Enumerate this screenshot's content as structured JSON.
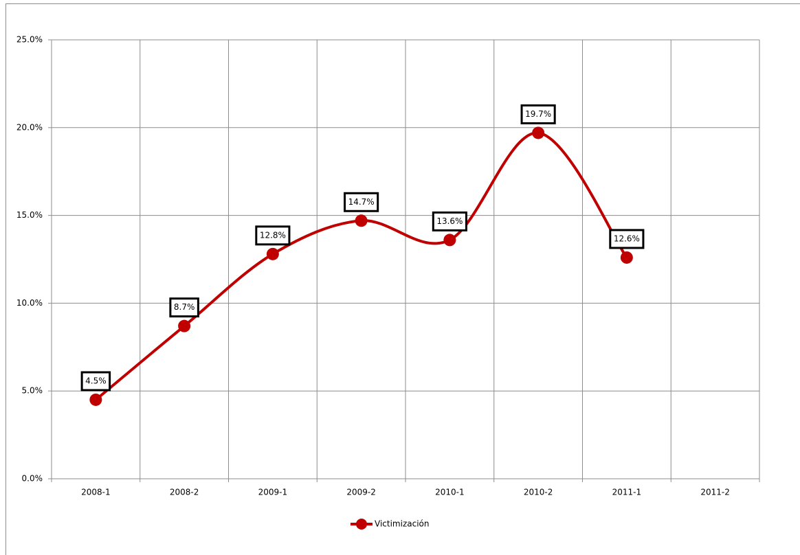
{
  "chart_data": {
    "type": "line",
    "categories": [
      "2008-1",
      "2008-2",
      "2009-1",
      "2009-2",
      "2010-1",
      "2010-2",
      "2011-1",
      "2011-2"
    ],
    "series": [
      {
        "name": "Victimización",
        "color": "#c00000",
        "values": [
          4.5,
          8.7,
          12.8,
          14.7,
          13.6,
          19.7,
          12.6,
          null
        ],
        "value_labels": [
          "4.5%",
          "8.7%",
          "12.8%",
          "14.7%",
          "13.6%",
          "19.7%",
          "12.6%",
          null
        ]
      }
    ],
    "ylim": [
      0,
      25
    ],
    "yticks": [
      {
        "value": 0,
        "label": "0.0%"
      },
      {
        "value": 5,
        "label": "5.0%"
      },
      {
        "value": 10,
        "label": "10.0%"
      },
      {
        "value": 15,
        "label": "15.0%"
      },
      {
        "value": 20,
        "label": "20.0%"
      },
      {
        "value": 25,
        "label": "25.0%"
      }
    ],
    "grid": true,
    "smooth": true,
    "legend": "bottom"
  }
}
